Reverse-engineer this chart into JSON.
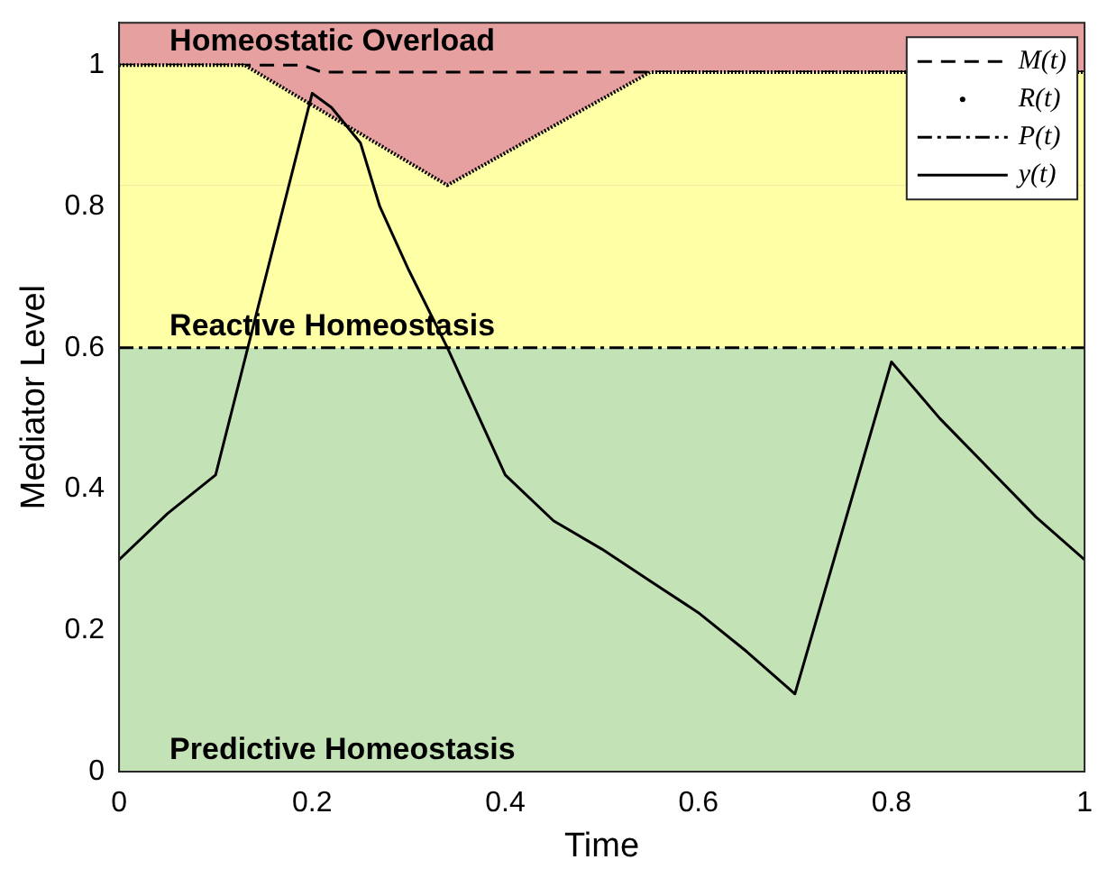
{
  "chart_data": {
    "type": "line",
    "xlabel": "Time",
    "ylabel": "Mediator Level",
    "xlim": [
      0,
      1
    ],
    "ylim": [
      0,
      1.06
    ],
    "xticks": [
      0,
      0.2,
      0.4,
      0.6,
      0.8,
      1
    ],
    "yticks": [
      0,
      0.2,
      0.4,
      0.6,
      0.8,
      1
    ],
    "grid": false,
    "legend": "top right",
    "bands": [
      {
        "axis": "y",
        "from": 0,
        "to": 0.6,
        "label": "Predictive Homeostasis",
        "color": "#c3e2b6"
      },
      {
        "axis": "y",
        "from": 0.6,
        "to": 1.06,
        "label": "Reactive Homeostasis",
        "color": "#ffffa6"
      },
      {
        "axis": "y",
        "from": 0.83,
        "to": 1.06,
        "label": "Homeostatic Overload",
        "color": "#e6a0a0"
      }
    ],
    "series": [
      {
        "name": "M(t)",
        "color": "#000000",
        "line_style": "dashed",
        "x": [
          0,
          0.19,
          0.21,
          1
        ],
        "values": [
          1,
          1,
          0.99,
          0.99
        ]
      },
      {
        "name": "R(t)",
        "color": "#000000",
        "line_style": "dotted",
        "x": [
          0,
          0.13,
          0.34,
          0.55,
          1
        ],
        "values": [
          1,
          1,
          0.83,
          0.99,
          0.99
        ]
      },
      {
        "name": "P(t)",
        "color": "#000000",
        "line_style": "dashdot",
        "x": [
          0,
          1
        ],
        "values": [
          0.6,
          0.6
        ]
      },
      {
        "name": "y(t)",
        "color": "#000000",
        "line_style": "solid",
        "x": [
          0,
          0.05,
          0.1,
          0.2,
          0.22,
          0.25,
          0.27,
          0.3,
          0.34,
          0.4,
          0.45,
          0.5,
          0.55,
          0.6,
          0.65,
          0.7,
          0.8,
          0.85,
          0.9,
          0.95,
          1
        ],
        "values": [
          0.3,
          0.365,
          0.42,
          0.96,
          0.94,
          0.89,
          0.8,
          0.71,
          0.6,
          0.42,
          0.355,
          0.315,
          0.27,
          0.225,
          0.17,
          0.11,
          0.58,
          0.5,
          0.43,
          0.36,
          0.3
        ]
      }
    ]
  }
}
